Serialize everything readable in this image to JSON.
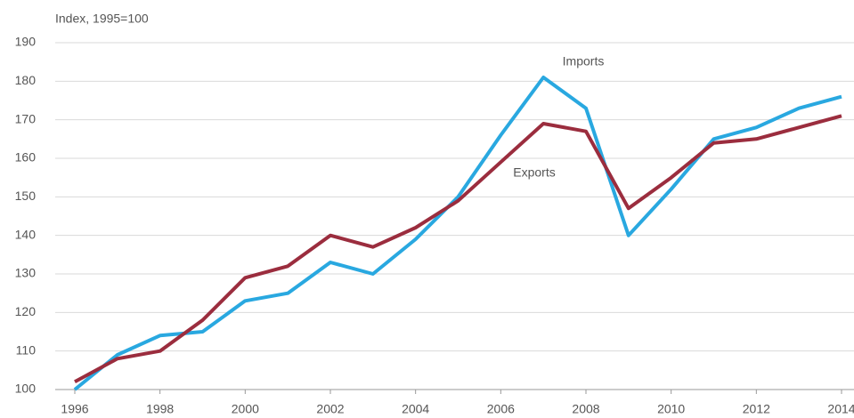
{
  "chart_data": {
    "type": "line",
    "y_label": "Index, 1995=100",
    "x": [
      1996,
      1997,
      1998,
      1999,
      2000,
      2001,
      2002,
      2003,
      2004,
      2005,
      2006,
      2007,
      2008,
      2009,
      2010,
      2011,
      2012,
      2013,
      2014
    ],
    "series": [
      {
        "name": "Imports",
        "color": "#29a8e0",
        "values": [
          100,
          109,
          114,
          115,
          123,
          125,
          133,
          130,
          139,
          150,
          166,
          181,
          173,
          140,
          152,
          165,
          168,
          173,
          176
        ]
      },
      {
        "name": "Exports",
        "color": "#9b2d3e",
        "values": [
          102,
          108,
          110,
          118,
          129,
          132,
          140,
          137,
          142,
          149,
          159,
          169,
          167,
          147,
          155,
          164,
          165,
          168,
          171
        ]
      }
    ],
    "xlim": [
      1996,
      2014
    ],
    "xticks": [
      1996,
      1998,
      2000,
      2002,
      2004,
      2006,
      2008,
      2010,
      2012,
      2014
    ],
    "ylim": [
      100,
      190
    ],
    "yticks": [
      100,
      110,
      120,
      130,
      140,
      150,
      160,
      170,
      180,
      190
    ],
    "grid": true
  }
}
